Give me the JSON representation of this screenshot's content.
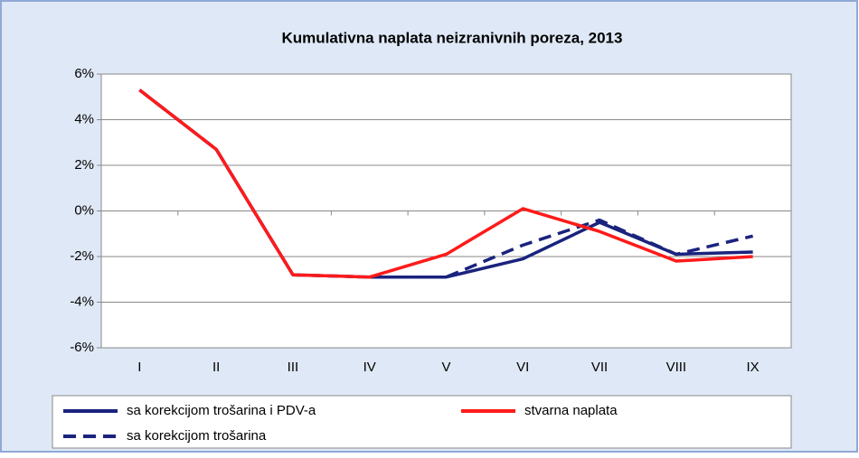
{
  "chart_data": {
    "type": "line",
    "title": "Kumulativna naplata neizranivnih poreza,  2013",
    "categories": [
      "I",
      "II",
      "III",
      "IV",
      "V",
      "VI",
      "VII",
      "VIII",
      "IX"
    ],
    "series": [
      {
        "name": "sa korekcijom trošarina i PDV-a",
        "color": "#1a237e",
        "line_style": "solid",
        "values": [
          5.3,
          2.7,
          -2.8,
          -2.9,
          -2.9,
          -2.1,
          -0.5,
          -1.9,
          -1.8
        ]
      },
      {
        "name": "stvarna naplata",
        "color": "#ff1a1a",
        "line_style": "solid",
        "values": [
          5.3,
          2.7,
          -2.8,
          -2.9,
          -1.9,
          0.1,
          -0.9,
          -2.2,
          -2.0
        ]
      },
      {
        "name": "sa korekcijom trošarina",
        "color": "#1a237e",
        "line_style": "dashed",
        "values": [
          5.3,
          2.7,
          -2.8,
          -2.9,
          -2.9,
          -1.5,
          -0.4,
          -1.9,
          -1.1
        ]
      }
    ],
    "ylim": [
      -6,
      6
    ],
    "yticks": [
      {
        "value": -6,
        "label": "-6%"
      },
      {
        "value": -4,
        "label": "-4%"
      },
      {
        "value": -2,
        "label": "-2%"
      },
      {
        "value": 0,
        "label": "0%"
      },
      {
        "value": 2,
        "label": "2%"
      },
      {
        "value": 4,
        "label": "4%"
      },
      {
        "value": 6,
        "label": "6%"
      }
    ],
    "grid": true,
    "legend": "bottom"
  }
}
